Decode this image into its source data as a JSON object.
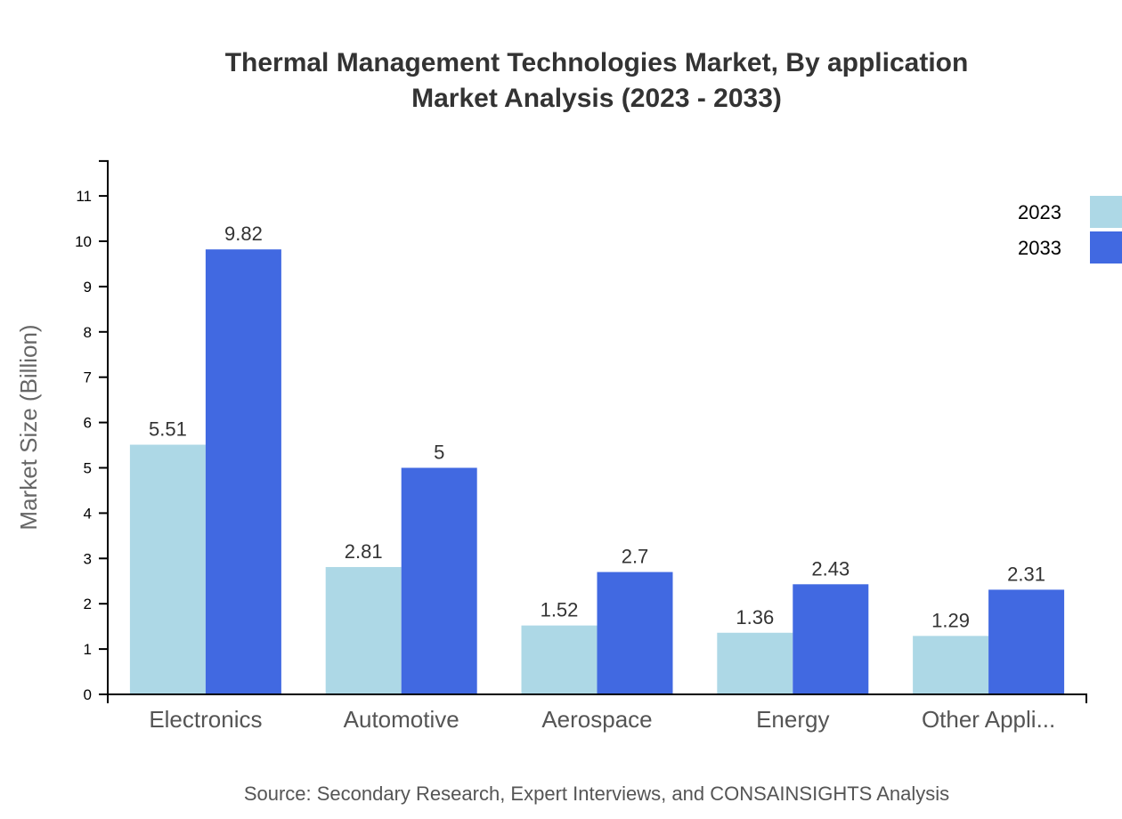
{
  "chart_data": {
    "type": "bar",
    "title": "Thermal Management Technologies Market, By application",
    "subtitle": "Market Analysis (2023 - 2033)",
    "ylabel": "Market Size (Billion)",
    "xlabel": "",
    "categories": [
      "Electronics",
      "Automotive",
      "Aerospace",
      "Energy",
      "Other Appli..."
    ],
    "series": [
      {
        "name": "2023",
        "color": "#add8e6",
        "values": [
          5.51,
          2.81,
          1.52,
          1.36,
          1.29
        ]
      },
      {
        "name": "2033",
        "color": "#4169e1",
        "values": [
          9.82,
          5,
          2.7,
          2.43,
          2.31
        ]
      }
    ],
    "ylim": [
      0,
      11.77
    ],
    "yticks": [
      0,
      1,
      2,
      3,
      4,
      5,
      6,
      7,
      8,
      9,
      10,
      11
    ],
    "grid": false,
    "legend": "top-right",
    "source": "Source: Secondary Research, Expert Interviews, and CONSAINSIGHTS Analysis"
  }
}
